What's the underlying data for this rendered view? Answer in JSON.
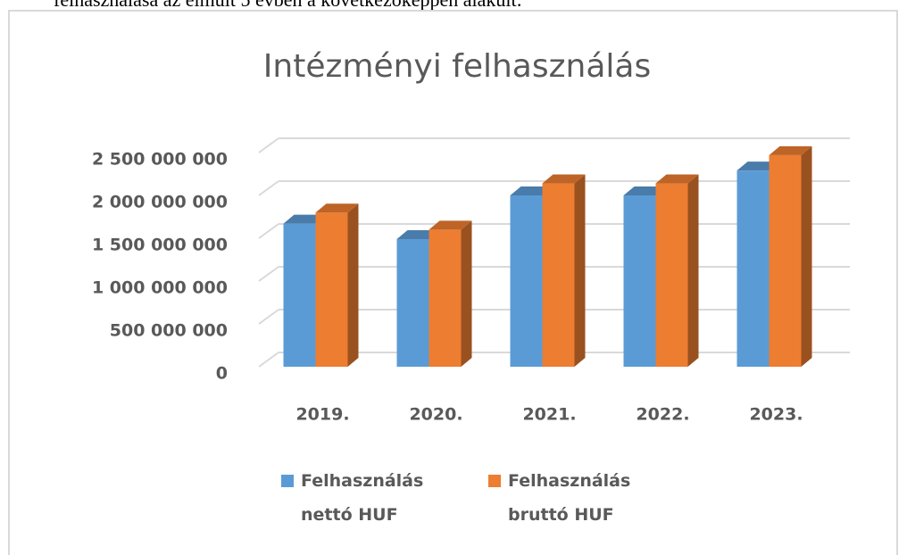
{
  "intro_text": "felhasználása az elmúlt 5 évben a következőképpen alakult:",
  "chart_data": {
    "type": "bar3d",
    "title": "Intézményi felhasználás",
    "categories": [
      "2019.",
      "2020.",
      "2021.",
      "2022.",
      "2023."
    ],
    "series": [
      {
        "name": "Felhasználás nettó HUF",
        "color": "#5b9bd5",
        "values": [
          1670000000,
          1490000000,
          2000000000,
          2000000000,
          2290000000
        ]
      },
      {
        "name": "Felhasználás bruttó HUF",
        "color": "#ed7d31",
        "values": [
          1800000000,
          1600000000,
          2140000000,
          2140000000,
          2470000000
        ]
      }
    ],
    "ylim": [
      0,
      2500000000
    ],
    "yticks": [
      0,
      {
        "value": 500000000,
        "label": "500 000 000"
      },
      {
        "value": 1000000000,
        "label": "1 000 000 000"
      },
      {
        "value": 1500000000,
        "label": "1 500 000 000"
      },
      {
        "value": 2000000000,
        "label": "2 000 000 000"
      },
      {
        "value": 2500000000,
        "label": "2 500 000 000"
      }
    ],
    "grid": true,
    "legend": "bottom"
  }
}
